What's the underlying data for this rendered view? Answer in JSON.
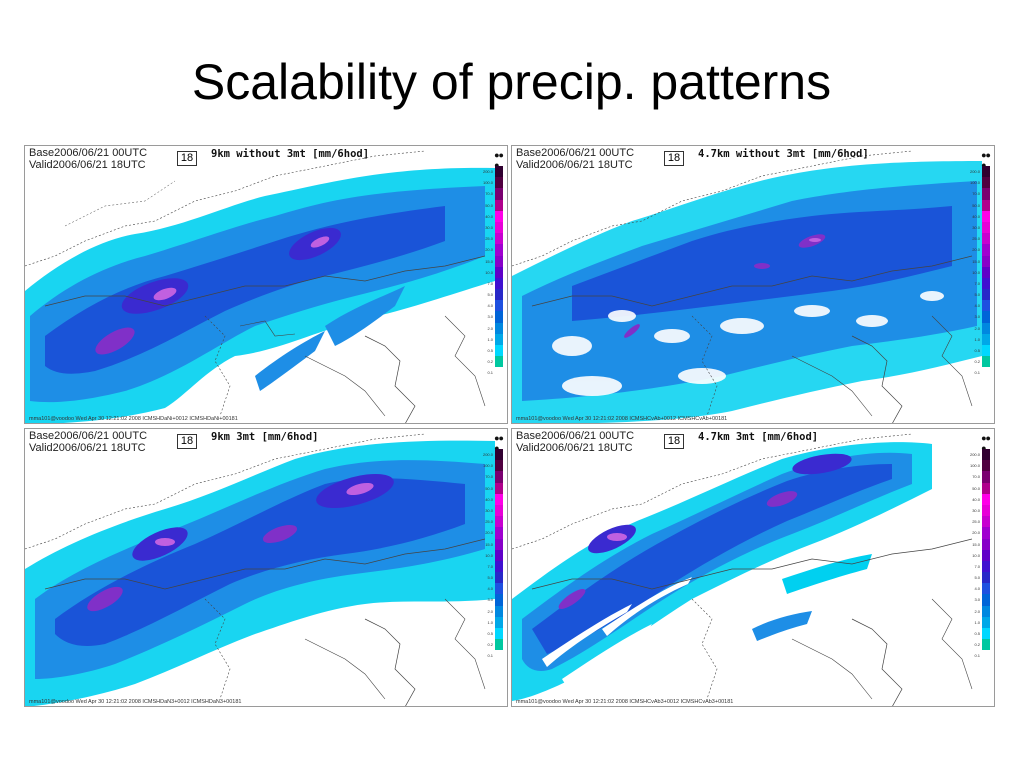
{
  "slide": {
    "title": "Scalability of precip. patterns"
  },
  "panels": [
    {
      "base_label": "Base",
      "base_value": "2006/06/21 00UTC",
      "valid_label": "Valid",
      "valid_value": "2006/06/21 18UTC",
      "lead": "18",
      "title": "9km without 3mt [mm/6hod]",
      "footer": "mma101@voodoo Wed Apr 30 12:21:02 2008 ICMSHDaNi+0012 ICMSHDaNi+00181"
    },
    {
      "base_label": "Base",
      "base_value": "2006/06/21 00UTC",
      "valid_label": "Valid",
      "valid_value": "2006/06/21 18UTC",
      "lead": "18",
      "title": "4.7km without 3mt [mm/6hod]",
      "footer": "mma101@voodoo Wed Apr 30 12:21:02 2008 ICMSHCvAb+0012 ICMSHCvAb+00181"
    },
    {
      "base_label": "Base",
      "base_value": "2006/06/21 00UTC",
      "valid_label": "Valid",
      "valid_value": "2006/06/21 18UTC",
      "lead": "18",
      "title": "9km 3mt [mm/6hod]",
      "footer": "mma101@voodoo Wed Apr 30 12:21:02 2008 ICMSHDaN3+0012 ICMSHDaN3+00181"
    },
    {
      "base_label": "Base",
      "base_value": "2006/06/21 00UTC",
      "valid_label": "Valid",
      "valid_value": "2006/06/21 18UTC",
      "lead": "18",
      "title": "4.7km 3mt [mm/6hod]",
      "footer": "mma101@voodoo Wed Apr 30 12:21:02 2008 ICMSHCvAb3+0012 ICMSHCvAb3+00181"
    }
  ],
  "colorbar": {
    "colors": [
      "#ffffff",
      "#00c8a0",
      "#00d8ff",
      "#00a8e8",
      "#0088e0",
      "#0064d8",
      "#1e50e0",
      "#2828c8",
      "#4010d0",
      "#6000c8",
      "#8800c8",
      "#a000d0",
      "#c800d0",
      "#e800d8",
      "#ff00e8",
      "#b0008c",
      "#7a0070",
      "#500040",
      "#300030"
    ],
    "ticks": [
      "200.0",
      "100.0",
      "70.0",
      "50.0",
      "40.0",
      "30.0",
      "25.0",
      "20.0",
      "15.0",
      "10.0",
      "7.0",
      "5.0",
      "4.0",
      "3.0",
      "2.0",
      "1.0",
      "0.5",
      "0.2",
      "0.1"
    ]
  },
  "colors": {
    "light": "#8ee0f0",
    "cyan": "#00d0f0",
    "mid": "#1e8ee6",
    "dark": "#1a54d8",
    "deep": "#3a2ad0",
    "purple": "#8030c8",
    "magenta": "#c060e0",
    "border": "#444444"
  }
}
